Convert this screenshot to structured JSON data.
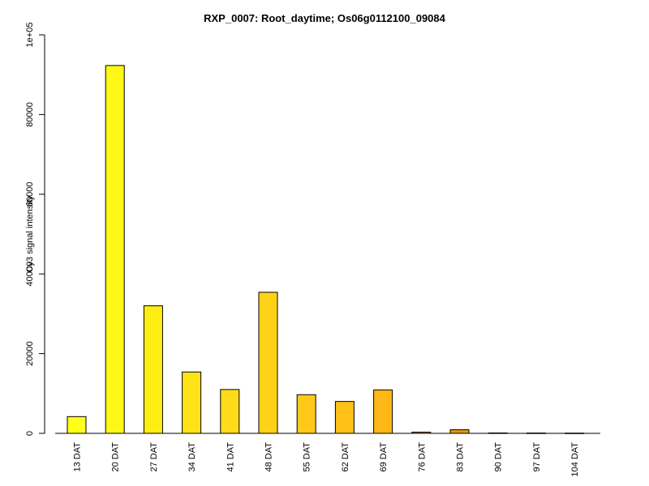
{
  "chart_data": {
    "type": "bar",
    "title": "RXP_0007: Root_daytime; Os06g0112100_09084",
    "xlabel": "",
    "ylabel": "Cy3 signal intensity",
    "ylim": [
      0,
      100000
    ],
    "yticks": [
      0,
      20000,
      40000,
      60000,
      80000,
      100000
    ],
    "ytick_labels": [
      "0",
      "20000",
      "40000",
      "60000",
      "80000",
      "1e+05"
    ],
    "grid": false,
    "legend": "none",
    "categories": [
      "13 DAT",
      "20 DAT",
      "27 DAT",
      "34 DAT",
      "41 DAT",
      "48 DAT",
      "55 DAT",
      "62 DAT",
      "69 DAT",
      "76 DAT",
      "83 DAT",
      "90 DAT",
      "97 DAT",
      "104 DAT"
    ],
    "values": [
      4200,
      92300,
      32000,
      15400,
      11000,
      35400,
      9700,
      8000,
      10900,
      300,
      900,
      100,
      80,
      60
    ],
    "colors": [
      "#ffff1a",
      "#fff715",
      "#ffee14",
      "#ffe317",
      "#ffdb19",
      "#ffd21a",
      "#ffc919",
      "#ffc018",
      "#ffb716",
      "#f5a414",
      "#eb9412",
      "#e08510",
      "#d6780e",
      "#cc6b0c"
    ]
  }
}
